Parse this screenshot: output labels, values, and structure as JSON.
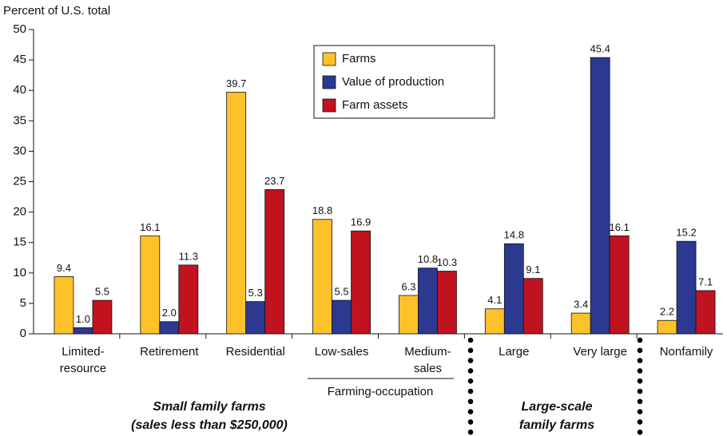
{
  "chart_data": {
    "type": "bar",
    "y_axis_label": "Percent of U.S. total",
    "categories": [
      [
        "Limited-",
        "resource"
      ],
      [
        "Retirement"
      ],
      [
        "Residential"
      ],
      [
        "Low-sales"
      ],
      [
        "Medium-",
        "sales"
      ],
      [
        "Large"
      ],
      [
        "Very large"
      ],
      [
        "Nonfamily"
      ]
    ],
    "series": [
      {
        "name": "Farms",
        "color": "#fdc22a",
        "values": [
          9.4,
          16.1,
          39.7,
          18.8,
          6.3,
          4.1,
          3.4,
          2.2
        ],
        "value_labels": [
          "9.4",
          "16.1",
          "39.7",
          "18.8",
          "6.3",
          "4.1",
          "3.4",
          "2.2"
        ]
      },
      {
        "name": "Value of production",
        "color": "#2b3990",
        "values": [
          1.0,
          2.0,
          5.3,
          5.5,
          10.8,
          14.8,
          45.4,
          15.2
        ],
        "value_labels": [
          "1.0",
          "2.0",
          "5.3",
          "5.5",
          "10.8",
          "14.8",
          "45.4",
          "15.2"
        ]
      },
      {
        "name": "Farm assets",
        "color": "#c1121f",
        "values": [
          5.5,
          11.3,
          23.7,
          16.9,
          10.3,
          9.1,
          16.1,
          7.1
        ],
        "value_labels": [
          "5.5",
          "11.3",
          "23.7",
          "16.9",
          "10.3",
          "9.1",
          "16.1",
          "7.1"
        ]
      }
    ],
    "ylim": [
      0,
      50
    ],
    "yticks": [
      0,
      5,
      10,
      15,
      20,
      25,
      30,
      35,
      40,
      45,
      50
    ],
    "annotations": {
      "farming_occupation": "Farming-occupation",
      "small_family": [
        "Small family farms",
        "(sales less than $250,000)"
      ],
      "large_scale": [
        "Large-scale",
        "family farms"
      ]
    }
  }
}
